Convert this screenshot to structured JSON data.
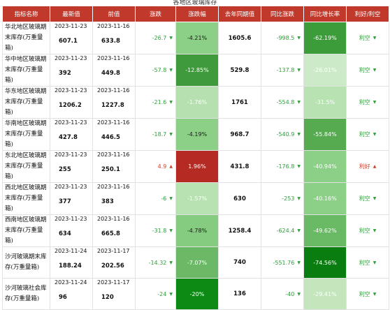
{
  "caption": "各地区玻璃库存",
  "headers": [
    "指标名称",
    "最新值",
    "前值",
    "涨跌",
    "涨跌幅",
    "去年同期值",
    "同比涨跌",
    "同比增长率",
    "利好/利空"
  ],
  "rows": [
    {
      "name": "华北地区玻璃期末库存(万重量箱)",
      "latest_date": "2023-11-23",
      "latest": "607.1",
      "prev_date": "2023-11-16",
      "prev": "633.8",
      "change": "-26.7",
      "change_pct": "-4.21%",
      "last_year": "1605.6",
      "yoy_change": "-998.5",
      "yoy_pct": "-62.19%",
      "signal": "利空",
      "pct_bg": "#8ccf86",
      "pct_fg": "#1a1a1a",
      "yoy_bg": "#3d9c3a",
      "yoy_fg": "#ffffff"
    },
    {
      "name": "华中地区玻璃期末库存(万重量箱)",
      "latest_date": "2023-11-23",
      "latest": "392",
      "prev_date": "2023-11-16",
      "prev": "449.8",
      "change": "-57.8",
      "change_pct": "-12.85%",
      "last_year": "529.8",
      "yoy_change": "-137.8",
      "yoy_pct": "-26.01%",
      "signal": "利空",
      "pct_bg": "#3e9a3a",
      "pct_fg": "#ffffff",
      "yoy_bg": "#cdeac8",
      "yoy_fg": "#ffffff"
    },
    {
      "name": "华东地区玻璃期末库存(万重量箱)",
      "latest_date": "2023-11-23",
      "latest": "1206.2",
      "prev_date": "2023-11-16",
      "prev": "1227.8",
      "change": "-21.6",
      "change_pct": "-1.76%",
      "last_year": "1761",
      "yoy_change": "-554.8",
      "yoy_pct": "-31.5%",
      "signal": "利空",
      "pct_bg": "#b6e0b0",
      "pct_fg": "#ffffff",
      "yoy_bg": "#b9e2b3",
      "yoy_fg": "#ffffff"
    },
    {
      "name": "华南地区玻璃期末库存(万重量箱)",
      "latest_date": "2023-11-23",
      "latest": "427.8",
      "prev_date": "2023-11-16",
      "prev": "446.5",
      "change": "-18.7",
      "change_pct": "-4.19%",
      "last_year": "968.7",
      "yoy_change": "-540.9",
      "yoy_pct": "-55.84%",
      "signal": "利空",
      "pct_bg": "#8ccf86",
      "pct_fg": "#1a1a1a",
      "yoy_bg": "#56aa50",
      "yoy_fg": "#ffffff"
    },
    {
      "name": "东北地区玻璃期末库存(万重量箱)",
      "latest_date": "2023-11-23",
      "latest": "255",
      "prev_date": "2023-11-16",
      "prev": "250.1",
      "change": "4.9",
      "change_pct": "1.96%",
      "last_year": "431.8",
      "yoy_change": "-176.8",
      "yoy_pct": "-40.94%",
      "signal": "利好",
      "pct_bg": "#b52a22",
      "pct_fg": "#ffffff",
      "yoy_bg": "#8ccf86",
      "yoy_fg": "#ffffff"
    },
    {
      "name": "西北地区玻璃期末库存(万重量箱)",
      "latest_date": "2023-11-23",
      "latest": "377",
      "prev_date": "2023-11-16",
      "prev": "383",
      "change": "-6",
      "change_pct": "-1.57%",
      "last_year": "630",
      "yoy_change": "-253",
      "yoy_pct": "-40.16%",
      "signal": "利空",
      "pct_bg": "#b9e2b3",
      "pct_fg": "#ffffff",
      "yoy_bg": "#8ccf86",
      "yoy_fg": "#ffffff"
    },
    {
      "name": "西南地区玻璃期末库存(万重量箱)",
      "latest_date": "2023-11-23",
      "latest": "634",
      "prev_date": "2023-11-16",
      "prev": "665.8",
      "change": "-31.8",
      "change_pct": "-4.78%",
      "last_year": "1258.4",
      "yoy_change": "-624.4",
      "yoy_pct": "-49.62%",
      "signal": "利空",
      "pct_bg": "#85cc80",
      "pct_fg": "#1a1a1a",
      "yoy_bg": "#6ab964",
      "yoy_fg": "#ffffff"
    },
    {
      "name": "沙河玻璃期末库存(万重量箱)",
      "latest_date": "2023-11-24",
      "latest": "188.24",
      "prev_date": "2023-11-17",
      "prev": "202.56",
      "change": "-14.32",
      "change_pct": "-7.07%",
      "last_year": "740",
      "yoy_change": "-551.76",
      "yoy_pct": "-74.56%",
      "signal": "利空",
      "pct_bg": "#6bb966",
      "pct_fg": "#ffffff",
      "yoy_bg": "#0a7d10",
      "yoy_fg": "#ffffff"
    },
    {
      "name": "沙河玻璃社会库存(万重量箱)",
      "latest_date": "2023-11-24",
      "latest": "96",
      "prev_date": "2023-11-17",
      "prev": "120",
      "change": "-24",
      "change_pct": "-20%",
      "last_year": "136",
      "yoy_change": "-40",
      "yoy_pct": "-29.41%",
      "signal": "利空",
      "pct_bg": "#0c8a14",
      "pct_fg": "#ffffff",
      "yoy_bg": "#c3e6bd",
      "yoy_fg": "#ffffff"
    }
  ],
  "colors": {
    "header_bg": "#c0392b",
    "up": "#d2402b",
    "down": "#2e9e3a"
  },
  "icons": {
    "down": "triangle-down-icon",
    "up": "triangle-up-icon"
  }
}
